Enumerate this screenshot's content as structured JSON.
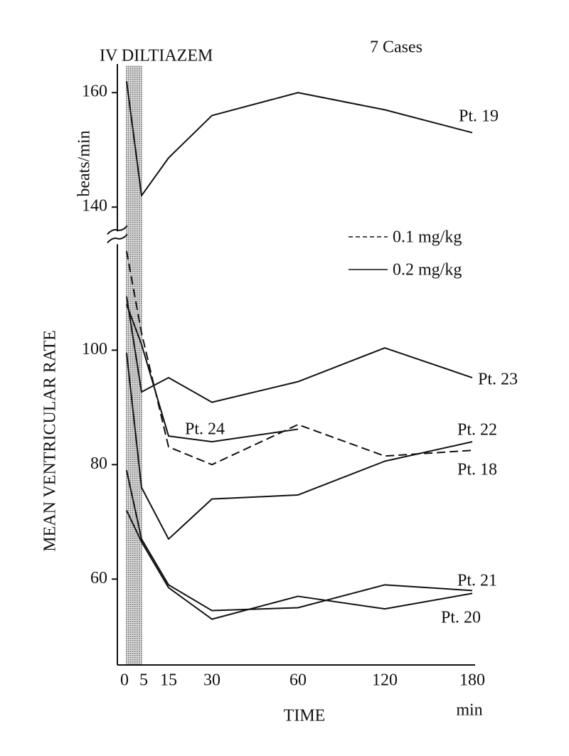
{
  "chart_data": {
    "type": "line",
    "title": "IV DILTIAZEM",
    "subtitle": "7 Cases",
    "y_label": "MEAN VENTRICULAR RATE",
    "y_unit": "beats/min",
    "x_label": "TIME",
    "x_unit": "min",
    "categories": [
      "0",
      "5",
      "15",
      "30",
      "60",
      "120",
      "180"
    ],
    "ylim": [
      45,
      165
    ],
    "axis_break": [
      120,
      135
    ],
    "yticks": [
      60,
      80,
      100,
      140,
      160
    ],
    "legend": [
      {
        "label": "0.1 mg/kg",
        "dashed": true
      },
      {
        "label": "0.2 mg/kg",
        "dashed": false
      }
    ],
    "series": [
      {
        "name": "Pt. 19",
        "dashed": false,
        "color": "#111",
        "values": [
          162,
          142,
          148.6,
          156,
          160,
          157,
          153
        ]
      },
      {
        "name": "Pt. 23",
        "dashed": false,
        "color": "#111",
        "values": [
          109.4,
          92.7,
          95.2,
          90.9,
          94.5,
          100.4,
          95.2
        ]
      },
      {
        "name": "Pt. 24",
        "dashed": false,
        "color": "#111",
        "values": [
          108,
          101,
          85,
          84,
          86.2,
          null,
          null
        ]
      },
      {
        "name": "Pt. 22",
        "dashed": false,
        "color": "#111",
        "values": [
          99.5,
          76,
          67,
          74,
          74.7,
          80.6,
          84
        ]
      },
      {
        "name": "Pt. 18",
        "dashed": true,
        "color": "#111",
        "values": [
          117.3,
          103,
          83.1,
          80,
          87,
          81.5,
          82.5
        ]
      },
      {
        "name": "Pt. 21",
        "dashed": false,
        "color": "#111",
        "values": [
          79,
          67,
          59,
          54.5,
          55,
          59,
          58
        ]
      },
      {
        "name": "Pt. 20",
        "dashed": false,
        "color": "#111",
        "values": [
          72,
          66.5,
          58.5,
          53,
          57,
          54.8,
          57.5
        ]
      }
    ]
  }
}
